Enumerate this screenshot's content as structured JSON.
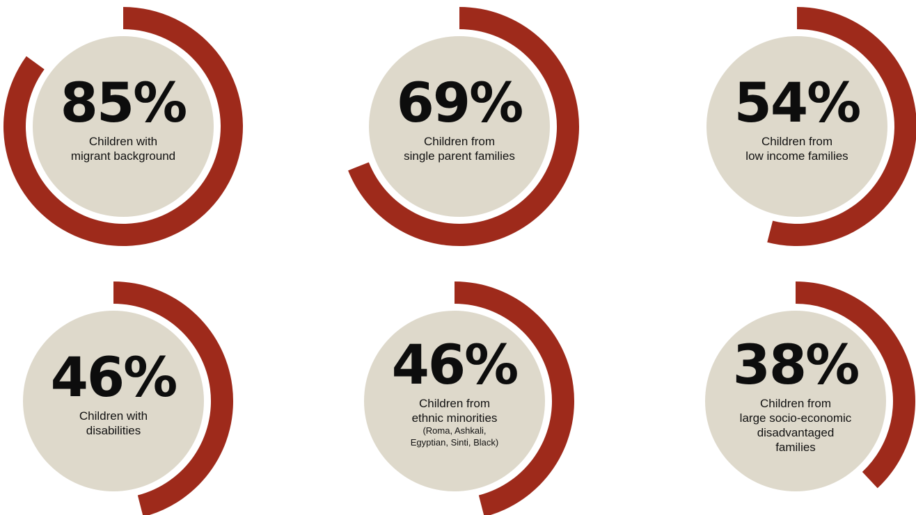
{
  "colors": {
    "arc": "#9e2a1b",
    "disc": "#ded9cb",
    "text": "#111111"
  },
  "chart_data": {
    "type": "pie",
    "title": "",
    "items": [
      {
        "label": "85%",
        "value": 85,
        "caption": [
          "Children with",
          "migrant background"
        ],
        "note": []
      },
      {
        "label": "69%",
        "value": 69,
        "caption": [
          "Children from",
          "single parent families"
        ],
        "note": []
      },
      {
        "label": "54%",
        "value": 54,
        "caption": [
          "Children from",
          "low income families"
        ],
        "note": []
      },
      {
        "label": "46%",
        "value": 46,
        "caption": [
          "Children with",
          "disabilities"
        ],
        "note": []
      },
      {
        "label": "46%",
        "value": 46,
        "caption": [
          "Children from",
          "ethnic minorities"
        ],
        "note": [
          "(Roma, Ashkali,",
          "Egyptian, Sinti, Black)"
        ]
      },
      {
        "label": "38%",
        "value": 38,
        "caption": [
          "Children from",
          "large socio-economic",
          "disadvantaged",
          "families"
        ],
        "note": []
      }
    ]
  }
}
